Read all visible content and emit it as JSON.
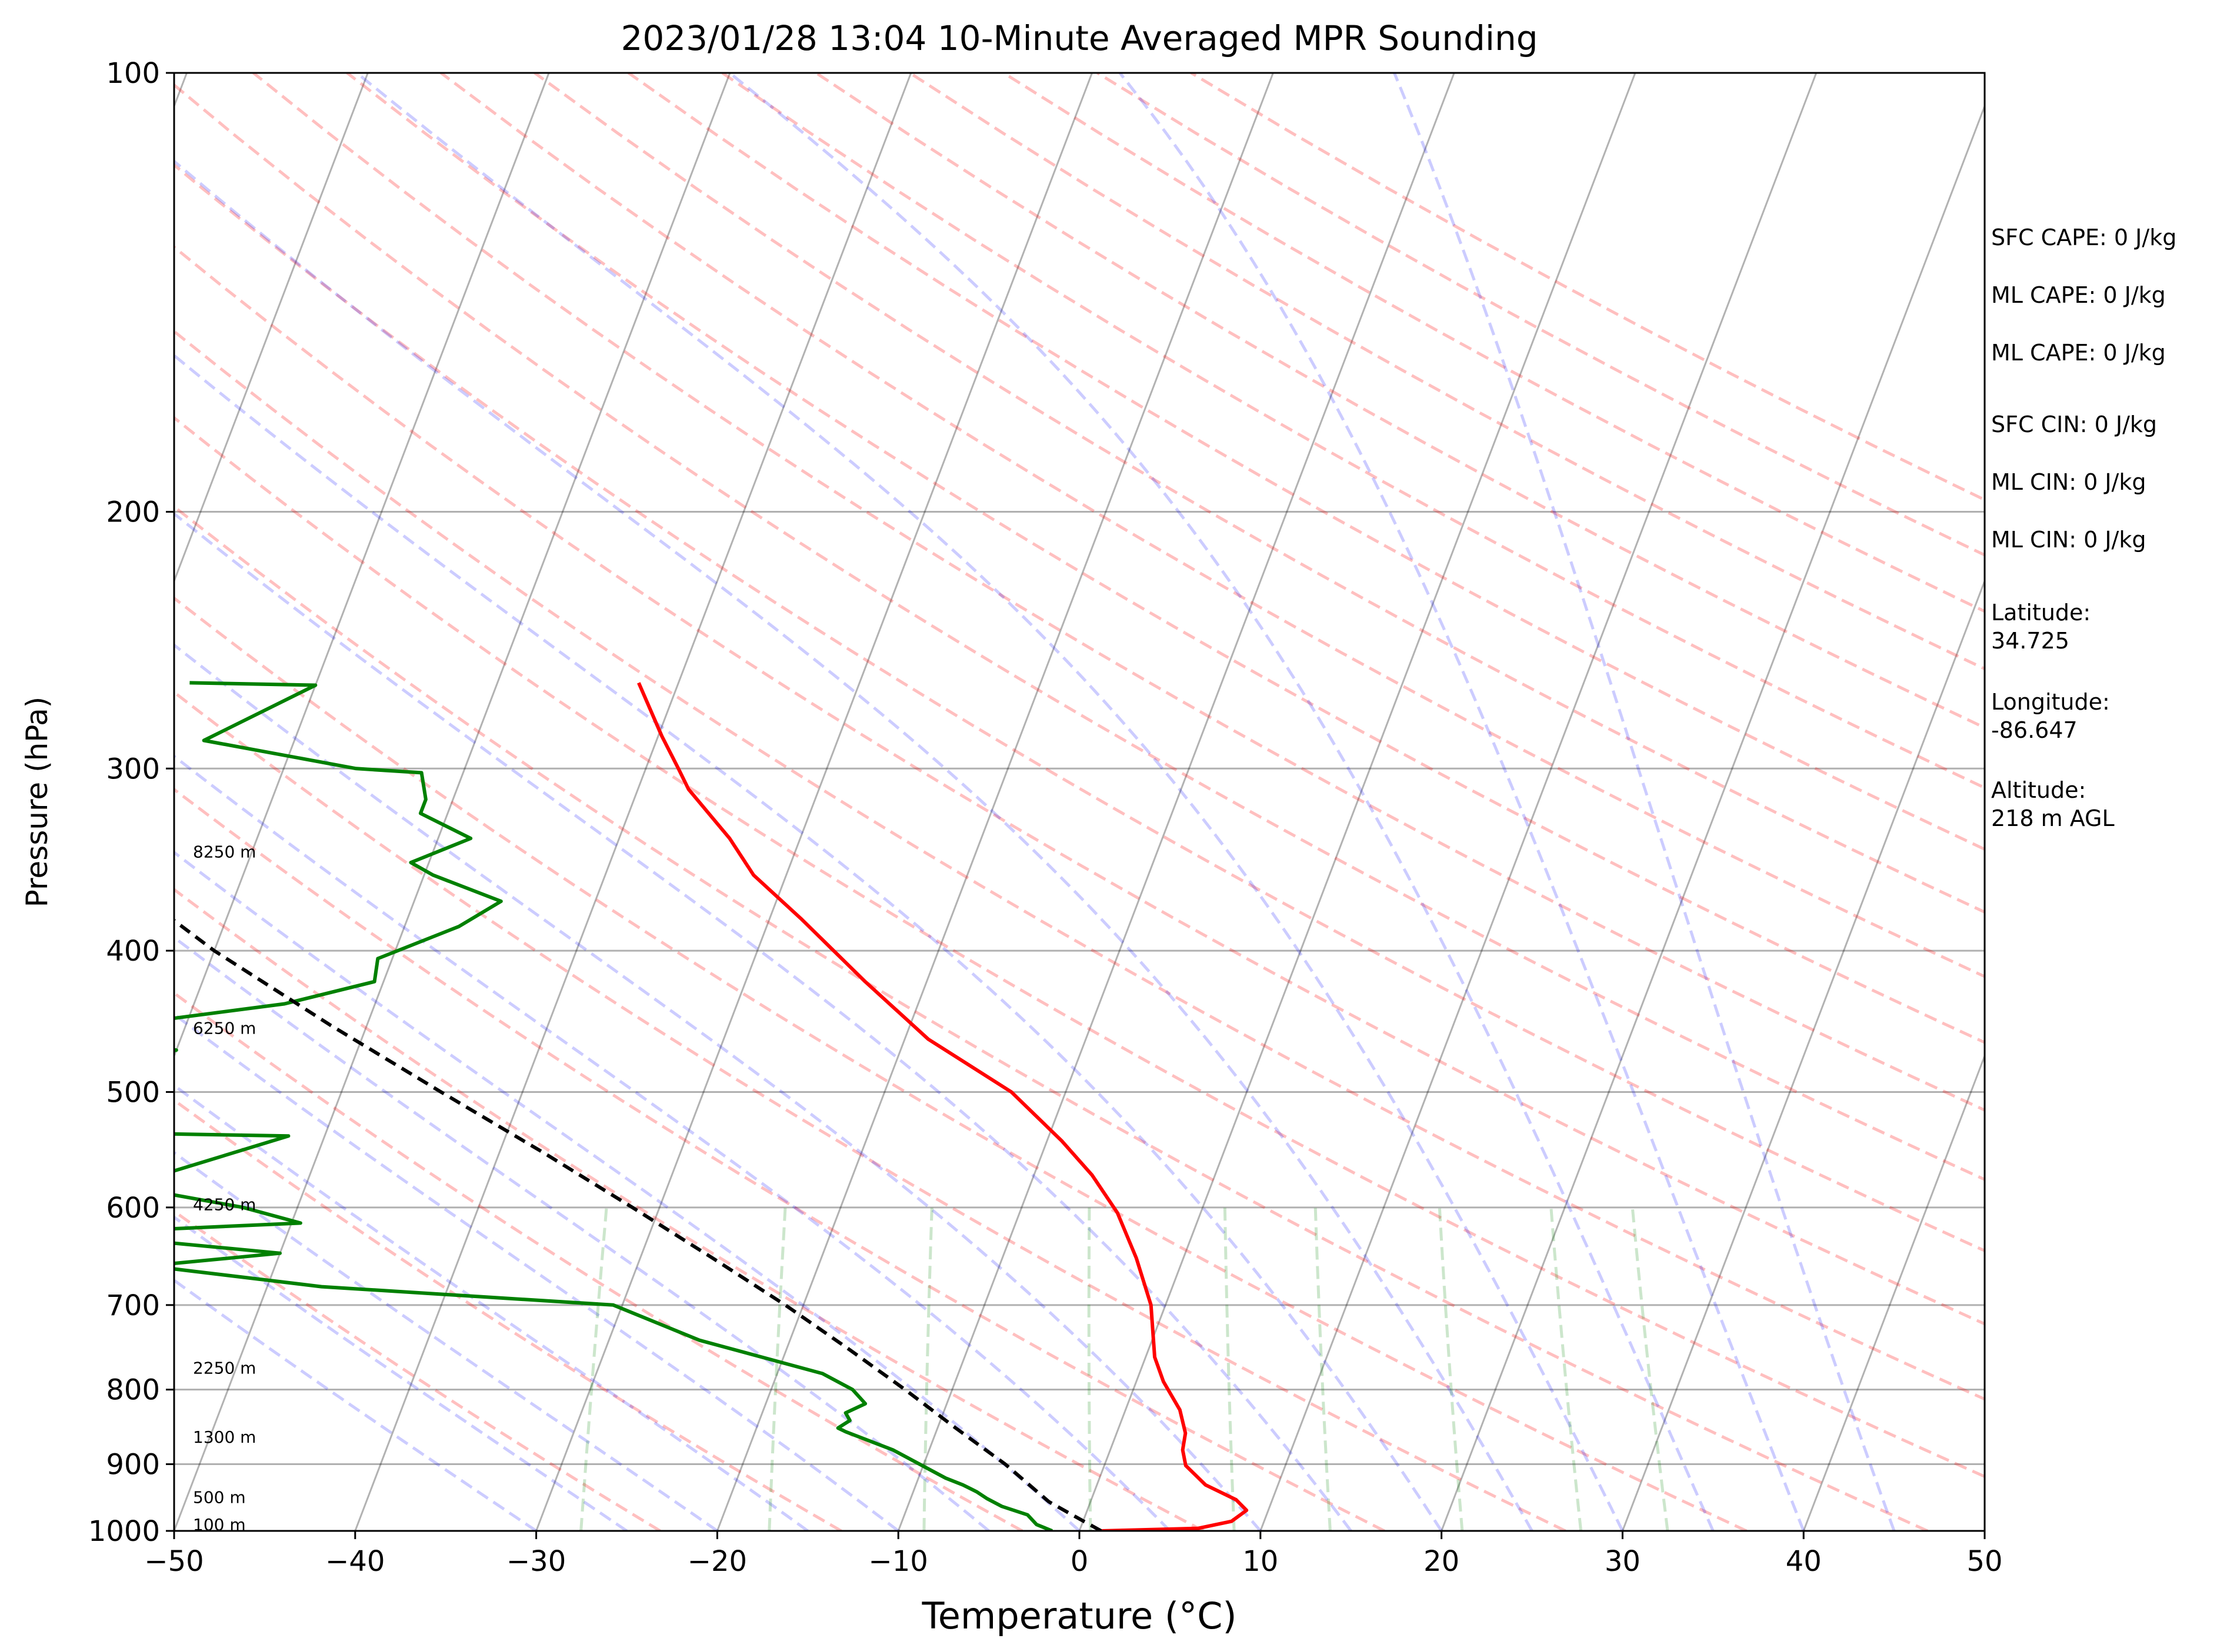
{
  "chart_data": {
    "type": "line",
    "title": "2023/01/28 13:04 10-Minute Averaged MPR Sounding",
    "xlabel": "Temperature (°C)",
    "ylabel": "Pressure (hPa)",
    "xlim": [
      -50,
      50
    ],
    "ylim": [
      1000,
      100
    ],
    "y_scale": "log",
    "skew": true,
    "grid": true,
    "xticks": [
      "−50",
      "−40",
      "−30",
      "−20",
      "−10",
      "0",
      "10",
      "20",
      "30",
      "40",
      "50"
    ],
    "yticks": [
      "100",
      "200",
      "300",
      "400",
      "500",
      "600",
      "700",
      "800",
      "900",
      "1000"
    ],
    "series": [
      {
        "kind": "temperature",
        "color": "#ff0000",
        "points": [
          [
            1.2,
            1000
          ],
          [
            6.5,
            996
          ],
          [
            8.2,
            985
          ],
          [
            8.8,
            968
          ],
          [
            8.0,
            952
          ],
          [
            6.0,
            930
          ],
          [
            4.5,
            902
          ],
          [
            4.0,
            880
          ],
          [
            3.8,
            857
          ],
          [
            3.0,
            826
          ],
          [
            1.5,
            790
          ],
          [
            0.5,
            760
          ],
          [
            -0.8,
            700
          ],
          [
            -2.6,
            650
          ],
          [
            -4.6,
            605
          ],
          [
            -6.8,
            570
          ],
          [
            -9.2,
            540
          ],
          [
            -13.0,
            500
          ],
          [
            -18.7,
            460
          ],
          [
            -23.4,
            420
          ],
          [
            -28.3,
            380
          ],
          [
            -31.8,
            355
          ],
          [
            -33.9,
            335
          ],
          [
            -37.2,
            310
          ],
          [
            -38.2,
            300
          ],
          [
            -39.8,
            285
          ],
          [
            -42.2,
            262
          ]
        ]
      },
      {
        "kind": "dewpoint",
        "color": "#008000",
        "points": [
          [
            -1.5,
            1000
          ],
          [
            -2.5,
            990
          ],
          [
            -3.2,
            975
          ],
          [
            -4.8,
            962
          ],
          [
            -5.8,
            950
          ],
          [
            -6.5,
            940
          ],
          [
            -7.4,
            930
          ],
          [
            -8.5,
            920
          ],
          [
            -12.0,
            880
          ],
          [
            -15.0,
            855
          ],
          [
            -15.5,
            850
          ],
          [
            -15.0,
            840
          ],
          [
            -15.4,
            830
          ],
          [
            -14.5,
            818
          ],
          [
            -15.5,
            800
          ],
          [
            -17.5,
            780
          ],
          [
            -25.0,
            740
          ],
          [
            -30.5,
            700
          ],
          [
            -47.0,
            680
          ],
          [
            -57.0,
            658
          ],
          [
            -50.0,
            645
          ],
          [
            -62.0,
            625
          ],
          [
            -49.5,
            615
          ],
          [
            -53.0,
            600
          ],
          [
            -60.0,
            580
          ],
          [
            -52.0,
            536
          ],
          [
            -67.0,
            532
          ],
          [
            -63.0,
            478
          ],
          [
            -60.0,
            468
          ],
          [
            -67.0,
            456
          ],
          [
            -55.0,
            435
          ],
          [
            -50.5,
            420
          ],
          [
            -50.8,
            405
          ],
          [
            -47.0,
            385
          ],
          [
            -45.2,
            370
          ],
          [
            -49.5,
            355
          ],
          [
            -51.0,
            348
          ],
          [
            -48.2,
            335
          ],
          [
            -51.5,
            322
          ],
          [
            -51.5,
            315
          ],
          [
            -52.3,
            302
          ],
          [
            -56.0,
            300
          ],
          [
            -65.0,
            287
          ],
          [
            -60.0,
            263
          ],
          [
            -67.0,
            262
          ]
        ]
      },
      {
        "kind": "parcel",
        "color": "#000000",
        "dashed": true,
        "points": [
          [
            1.2,
            1000
          ],
          [
            -0.5,
            978
          ],
          [
            -2.3,
            955
          ],
          [
            -5.5,
            900
          ],
          [
            -9.0,
            850
          ],
          [
            -12.6,
            800
          ],
          [
            -16.6,
            750
          ],
          [
            -21.0,
            700
          ],
          [
            -26.0,
            650
          ],
          [
            -31.5,
            600
          ],
          [
            -37.6,
            550
          ],
          [
            -44.5,
            500
          ],
          [
            -52.0,
            450
          ],
          [
            -60.0,
            400
          ],
          [
            -68.0,
            350
          ],
          [
            -75.5,
            300
          ],
          [
            -80.0,
            280
          ]
        ]
      }
    ],
    "reference_lines": {
      "dry_adiabats": {
        "color": "#ff0000",
        "opacity": 0.25,
        "dashed": true
      },
      "moist_adiabats": {
        "color": "#0000ff",
        "opacity": 0.2,
        "dashed": true
      },
      "mixing_ratio": {
        "color": "#008000",
        "opacity": 0.2,
        "dashed": true
      },
      "isotherms": {
        "color": "#000000",
        "opacity": 0.3
      }
    },
    "height_labels": [
      {
        "label": "100 m",
        "p": 990
      },
      {
        "label": "500 m",
        "p": 948
      },
      {
        "label": "1300 m",
        "p": 862
      },
      {
        "label": "2250 m",
        "p": 773
      },
      {
        "label": "4250 m",
        "p": 597
      },
      {
        "label": "6250 m",
        "p": 452
      },
      {
        "label": "8250 m",
        "p": 342
      }
    ],
    "annotations": [
      "SFC CAPE: 0 J/kg",
      "ML CAPE: 0 J/kg",
      "ML CAPE: 0 J/kg",
      "SFC CIN: 0 J/kg",
      "ML CIN: 0 J/kg",
      "ML CIN: 0 J/kg",
      "Latitude:\n34.725",
      "Longitude:\n-86.647",
      "Altitude:\n218 m AGL"
    ]
  }
}
